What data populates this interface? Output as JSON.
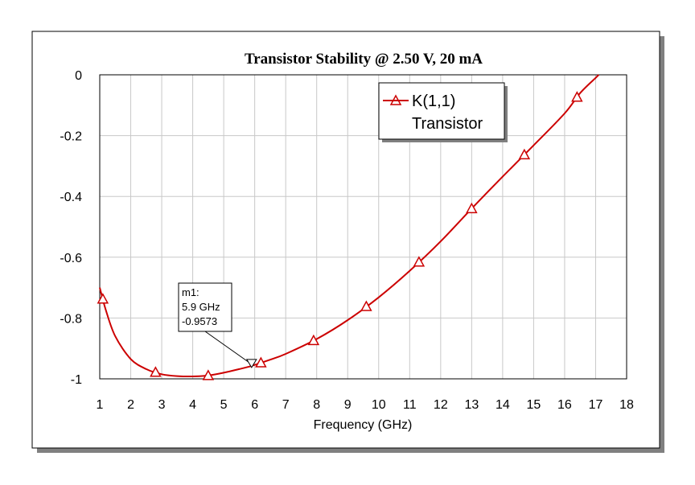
{
  "chart_data": {
    "type": "line",
    "title": "Transistor Stability @ 2.50 V, 20 mA",
    "xlabel": "Frequency (GHz)",
    "ylabel": "",
    "xlim": [
      1,
      18
    ],
    "ylim": [
      -1,
      0
    ],
    "x_ticks": [
      "1",
      "2",
      "3",
      "4",
      "5",
      "6",
      "7",
      "8",
      "9",
      "10",
      "11",
      "12",
      "13",
      "14",
      "15",
      "16",
      "17",
      "18"
    ],
    "y_ticks": [
      "0",
      "-0.2",
      "-0.4",
      "-0.6",
      "-0.8",
      "-1"
    ],
    "grid": true,
    "legend_position": "top-right",
    "series": [
      {
        "name": "K(1,1)",
        "name_line2": "Transistor",
        "color": "#cc0000",
        "x": [
          1.0,
          1.2,
          1.5,
          2.0,
          2.5,
          3.0,
          3.5,
          4.0,
          4.5,
          5.0,
          5.5,
          5.9,
          6.5,
          7.0,
          8.0,
          9.0,
          10.0,
          11.0,
          12.0,
          13.0,
          14.0,
          15.0,
          16.0,
          16.5,
          17.0,
          17.1
        ],
        "y": [
          -0.7,
          -0.775,
          -0.86,
          -0.935,
          -0.968,
          -0.985,
          -0.991,
          -0.992,
          -0.989,
          -0.98,
          -0.968,
          -0.9573,
          -0.937,
          -0.918,
          -0.869,
          -0.807,
          -0.732,
          -0.645,
          -0.548,
          -0.44,
          -0.335,
          -0.232,
          -0.127,
          -0.06,
          -0.01,
          0.0
        ],
        "marker_x": [
          1.1,
          2.8,
          4.5,
          6.2,
          7.9,
          9.6,
          11.3,
          13.0,
          14.7,
          16.4
        ]
      }
    ],
    "marker": {
      "x": 5.9,
      "y": -0.9573,
      "label": "m1:",
      "freq_text": "5.9 GHz",
      "value_text": "-0.9573"
    }
  }
}
